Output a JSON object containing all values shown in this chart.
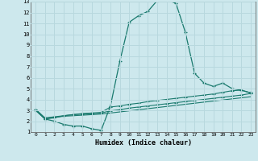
{
  "xlabel": "Humidex (Indice chaleur)",
  "xlim": [
    -0.5,
    23.5
  ],
  "ylim": [
    1,
    13
  ],
  "xticks": [
    0,
    1,
    2,
    3,
    4,
    5,
    6,
    7,
    8,
    9,
    10,
    11,
    12,
    13,
    14,
    15,
    16,
    17,
    18,
    19,
    20,
    21,
    22,
    23
  ],
  "yticks": [
    1,
    2,
    3,
    4,
    5,
    6,
    7,
    8,
    9,
    10,
    11,
    12,
    13
  ],
  "bg_color": "#cde8ed",
  "grid_color": "#b8d8de",
  "line_color": "#1a7a6e",
  "line1_x": [
    0,
    1,
    2,
    3,
    4,
    5,
    6,
    7,
    8,
    9,
    10,
    11,
    12,
    13,
    14,
    15,
    16,
    17,
    18,
    19,
    20,
    21,
    22,
    23
  ],
  "line1_y": [
    3.0,
    2.2,
    2.0,
    1.7,
    1.55,
    1.55,
    1.3,
    1.15,
    3.4,
    7.5,
    11.1,
    11.7,
    12.1,
    13.1,
    13.15,
    12.85,
    10.2,
    6.4,
    5.5,
    5.2,
    5.5,
    5.0,
    4.85,
    4.6
  ],
  "line2_x": [
    0,
    1,
    2,
    3,
    4,
    5,
    6,
    7,
    8,
    9,
    10,
    11,
    12,
    13,
    14,
    15,
    16,
    17,
    18,
    19,
    20,
    21,
    22,
    23
  ],
  "line2_y": [
    3.0,
    2.2,
    2.3,
    2.5,
    2.6,
    2.7,
    2.75,
    2.8,
    3.3,
    3.4,
    3.55,
    3.65,
    3.8,
    3.9,
    4.0,
    4.1,
    4.2,
    4.3,
    4.4,
    4.5,
    4.65,
    4.8,
    4.85,
    4.6
  ],
  "line3_x": [
    0,
    1,
    2,
    3,
    4,
    5,
    6,
    7,
    8,
    9,
    10,
    11,
    12,
    13,
    14,
    15,
    16,
    17,
    18,
    19,
    20,
    21,
    22,
    23
  ],
  "line3_y": [
    3.1,
    2.3,
    2.4,
    2.5,
    2.6,
    2.65,
    2.7,
    2.75,
    2.95,
    3.05,
    3.2,
    3.3,
    3.4,
    3.5,
    3.6,
    3.7,
    3.8,
    3.9,
    4.0,
    4.1,
    4.2,
    4.3,
    4.4,
    4.55
  ],
  "line4_x": [
    0,
    1,
    2,
    3,
    4,
    5,
    6,
    7,
    8,
    9,
    10,
    11,
    12,
    13,
    14,
    15,
    16,
    17,
    18,
    19,
    20,
    21,
    22,
    23
  ],
  "line4_y": [
    3.05,
    2.25,
    2.35,
    2.45,
    2.5,
    2.55,
    2.6,
    2.65,
    2.75,
    2.85,
    2.95,
    3.05,
    3.15,
    3.25,
    3.35,
    3.45,
    3.55,
    3.65,
    3.75,
    3.85,
    3.95,
    4.05,
    4.15,
    4.25
  ]
}
